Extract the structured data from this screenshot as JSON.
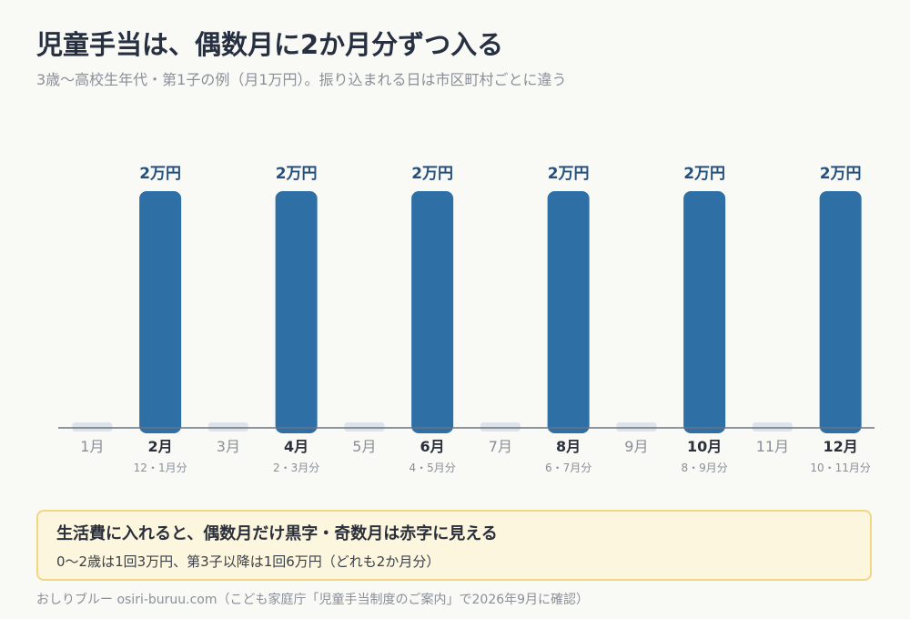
{
  "header": {
    "title": "児童手当は、偶数月に2か月分ずつ入る",
    "subtitle": "3歳〜高校生年代・第1子の例（月1万円）。振り込まれる日は市区町村ごとに違う"
  },
  "chart_data": {
    "type": "bar",
    "categories": [
      "1月",
      "2月",
      "3月",
      "4月",
      "5月",
      "6月",
      "7月",
      "8月",
      "9月",
      "10月",
      "11月",
      "12月"
    ],
    "values": [
      0,
      2,
      0,
      2,
      0,
      2,
      0,
      2,
      0,
      2,
      0,
      2
    ],
    "value_labels": [
      "",
      "2万円",
      "",
      "2万円",
      "",
      "2万円",
      "",
      "2万円",
      "",
      "2万円",
      "",
      "2万円"
    ],
    "category_sublabels": [
      "",
      "12・1月分",
      "",
      "2・3月分",
      "",
      "4・5月分",
      "",
      "6・7月分",
      "",
      "8・9月分",
      "",
      "10・11月分"
    ],
    "unit": "万円",
    "ylim": [
      0,
      2
    ],
    "grid": false,
    "colors": {
      "paid": "#2e6fa6",
      "unpaid": "#dde3ea",
      "value_label": "#24507e",
      "axis": "#6b7280",
      "paid_tick": "#2a2f3a",
      "unpaid_tick": "#8a8f98"
    }
  },
  "callout": {
    "title": "生活費に入れると、偶数月だけ黒字・奇数月は赤字に見える",
    "text": "0〜2歳は1回3万円、第3子以降は1回6万円（どれも2か月分）"
  },
  "footer": {
    "text": "おしりブルー osiri-buruu.com（こども家庭庁「児童手当制度のご案内」で2026年9月に確認）"
  }
}
